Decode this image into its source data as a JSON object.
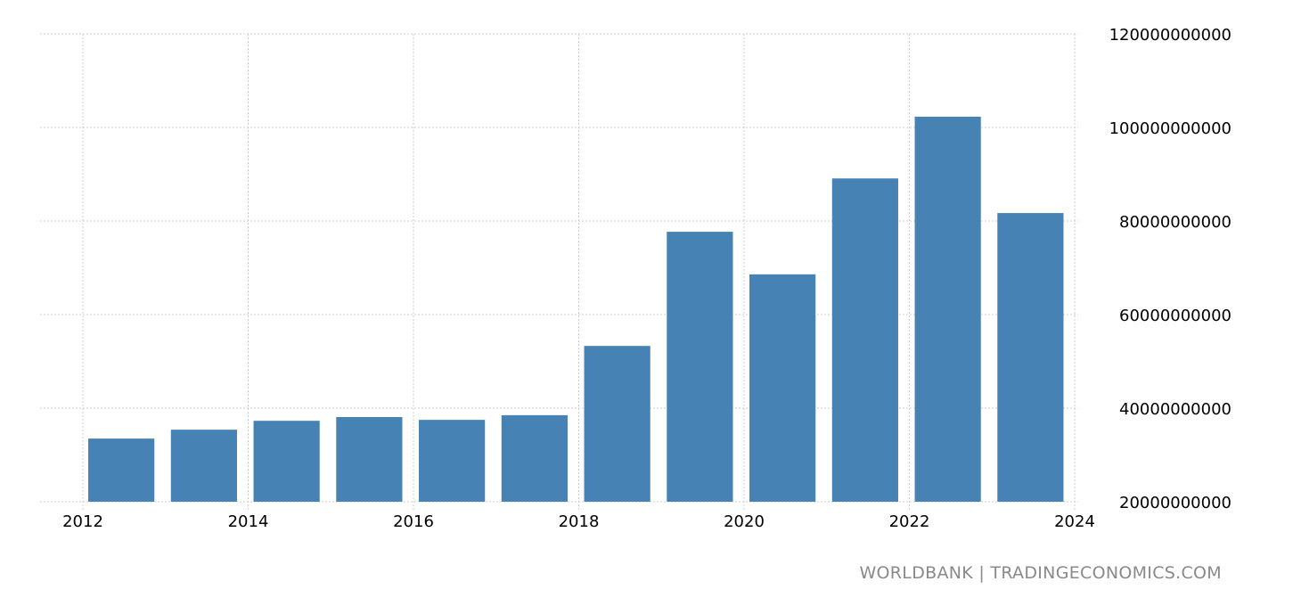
{
  "chart_data": {
    "type": "bar",
    "title": "",
    "xlabel": "",
    "ylabel": "",
    "categories": [
      "2012",
      "2013",
      "2014",
      "2015",
      "2016",
      "2017",
      "2018",
      "2019",
      "2020",
      "2021",
      "2022",
      "2023"
    ],
    "values": [
      33500000000,
      35400000000,
      37300000000,
      38100000000,
      37500000000,
      38500000000,
      53300000000,
      77700000000,
      68600000000,
      89100000000,
      102300000000,
      81700000000
    ],
    "ylim": [
      20000000000,
      120000000000
    ],
    "y_ticks": [
      "20000000000",
      "40000000000",
      "60000000000",
      "80000000000",
      "100000000000",
      "120000000000"
    ],
    "x_ticks": [
      "2012",
      "2014",
      "2016",
      "2018",
      "2020",
      "2022",
      "2024"
    ],
    "xlim": [
      2012,
      2024
    ],
    "y_axis_position": "right",
    "grid": true,
    "bar_color": "#4682b4"
  },
  "footer": "WORLDBANK | TRADINGECONOMICS.COM"
}
